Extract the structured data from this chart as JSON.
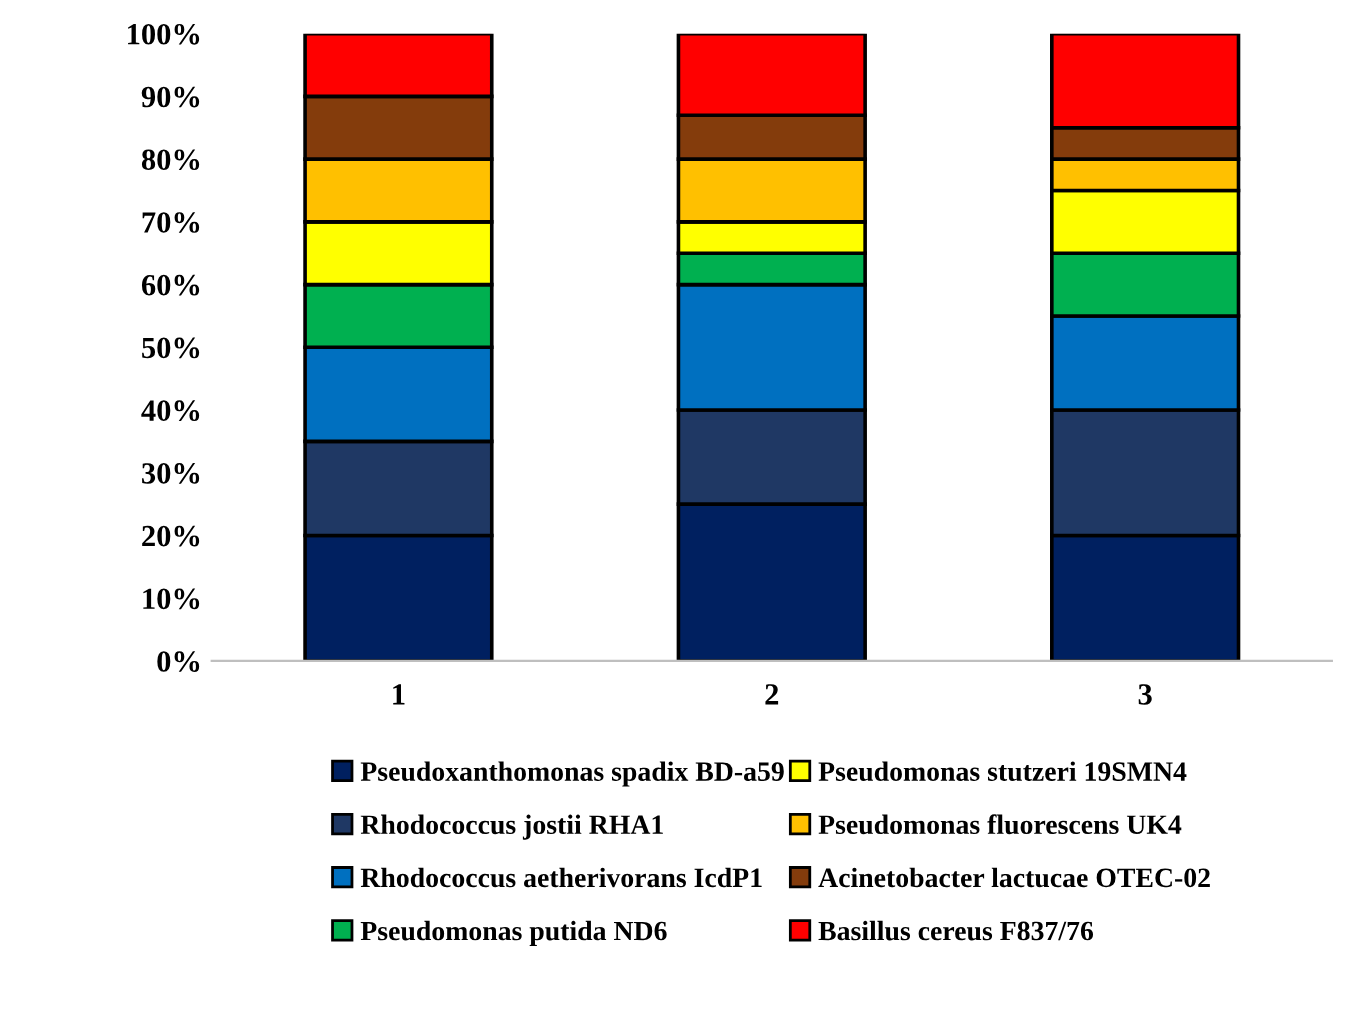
{
  "chart_data": {
    "type": "bar",
    "stacked": true,
    "categories": [
      "1",
      "2",
      "3"
    ],
    "series": [
      {
        "name": "Pseudoxanthomonas spadix BD-a59",
        "color": "#002060",
        "values": [
          20,
          25,
          20
        ]
      },
      {
        "name": "Rhodococcus jostii RHA1",
        "color": "#1f3864",
        "values": [
          15,
          15,
          20
        ]
      },
      {
        "name": "Rhodococcus aetherivorans IcdP1",
        "color": "#0070c0",
        "values": [
          15,
          20,
          15
        ]
      },
      {
        "name": "Pseudomonas putida ND6",
        "color": "#00b050",
        "values": [
          10,
          5,
          10
        ]
      },
      {
        "name": "Pseudomonas stutzeri 19SMN4",
        "color": "#ffff00",
        "values": [
          10,
          5,
          10
        ]
      },
      {
        "name": "Pseudomonas fluorescens UK4",
        "color": "#ffc000",
        "values": [
          10,
          10,
          5
        ]
      },
      {
        "name": "Acinetobacter lactucae OTEC-02",
        "color": "#843c0c",
        "values": [
          10,
          7,
          5
        ]
      },
      {
        "name": "Basillus cereus F837/76",
        "color": "#ff0000",
        "values": [
          10,
          13,
          15
        ]
      }
    ],
    "ylim": [
      0,
      100
    ],
    "yticks": [
      {
        "value": 0,
        "label": "0%"
      },
      {
        "value": 10,
        "label": "10%"
      },
      {
        "value": 20,
        "label": "20%"
      },
      {
        "value": 30,
        "label": "30%"
      },
      {
        "value": 40,
        "label": "40%"
      },
      {
        "value": 50,
        "label": "50%"
      },
      {
        "value": 60,
        "label": "60%"
      },
      {
        "value": 70,
        "label": "70%"
      },
      {
        "value": 80,
        "label": "80%"
      },
      {
        "value": 90,
        "label": "90%"
      },
      {
        "value": 100,
        "label": "100%"
      }
    ],
    "grid": false,
    "legend": "bottom"
  }
}
